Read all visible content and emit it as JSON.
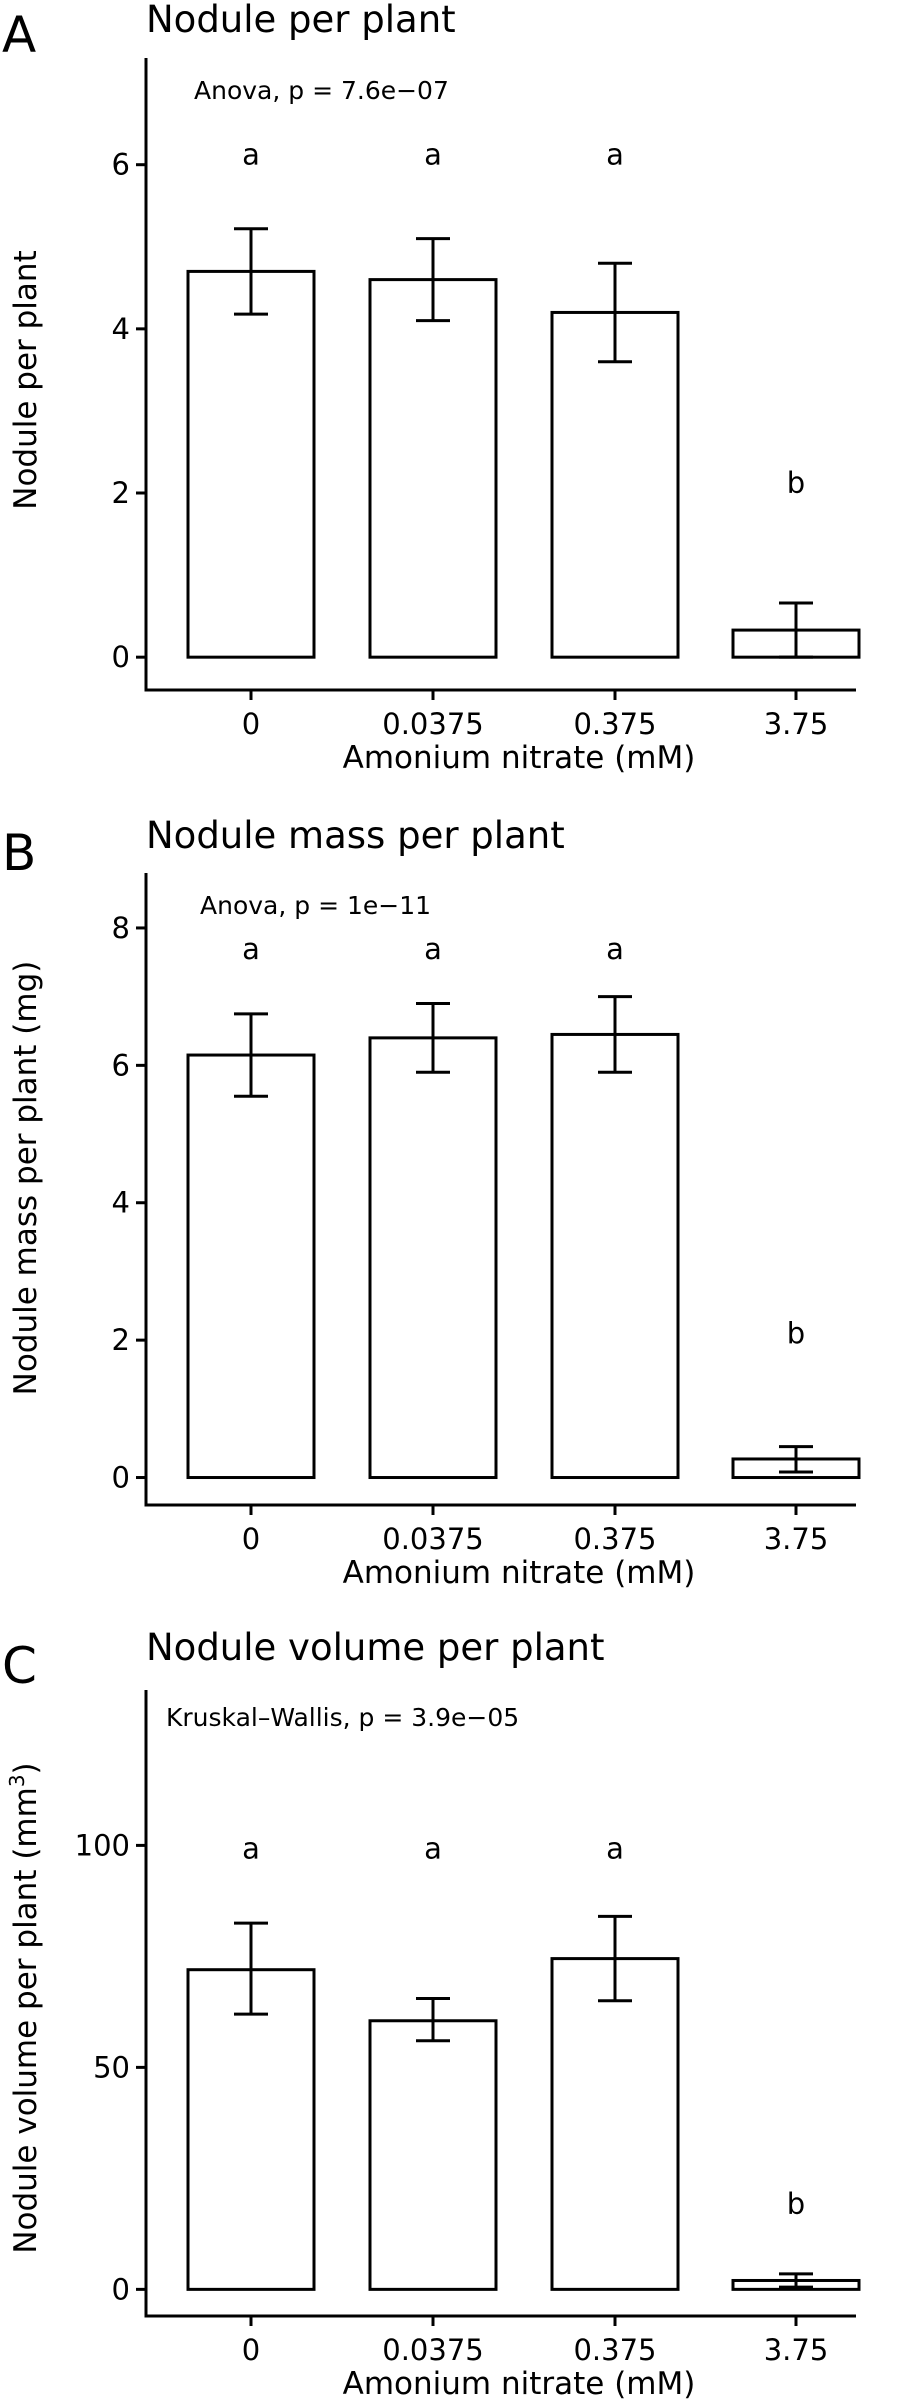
{
  "chart_data": [
    {
      "type": "bar",
      "panel": "A",
      "title": "Nodule per plant",
      "stat_text": "Anova, p = 7.6e−07",
      "xlabel": "Amonium nitrate (mM)",
      "ylabel": "Nodule per plant",
      "ylabel_sup": "",
      "ylabel_suffix": "",
      "categories": [
        "0",
        "0.0375",
        "0.375",
        "3.75"
      ],
      "values": [
        4.7,
        4.6,
        4.2,
        0.33
      ],
      "err_low": [
        4.18,
        4.1,
        3.6,
        0.0
      ],
      "err_high": [
        5.22,
        5.1,
        4.8,
        0.66
      ],
      "letters": [
        "a",
        "a",
        "a",
        "b"
      ],
      "letter_y": [
        6.0,
        6.0,
        6.0,
        2.0
      ],
      "ylim": [
        -0.4,
        7.3
      ],
      "yticks": [
        0,
        2,
        4,
        6
      ],
      "ytick_labels": [
        "0",
        "2",
        "4",
        "6"
      ]
    },
    {
      "type": "bar",
      "panel": "B",
      "title": "Nodule mass per plant",
      "stat_text": "Anova, p = 1e−11",
      "xlabel": "Amonium nitrate (mM)",
      "ylabel": "Nodule mass per plant (mg)",
      "ylabel_sup": "",
      "ylabel_suffix": "",
      "categories": [
        "0",
        "0.0375",
        "0.375",
        "3.75"
      ],
      "values": [
        6.15,
        6.4,
        6.45,
        0.27
      ],
      "err_low": [
        5.55,
        5.9,
        5.9,
        0.08
      ],
      "err_high": [
        6.75,
        6.9,
        7.0,
        0.45
      ],
      "letters": [
        "a",
        "a",
        "a",
        "b"
      ],
      "letter_y": [
        7.55,
        7.55,
        7.55,
        1.95
      ],
      "ylim": [
        -0.4,
        8.8
      ],
      "yticks": [
        0,
        2,
        4,
        6,
        8
      ],
      "ytick_labels": [
        "0",
        "2",
        "4",
        "6",
        "8"
      ]
    },
    {
      "type": "bar",
      "panel": "C",
      "title": "Nodule volume per plant",
      "stat_text": "Kruskal–Wallis, p = 3.9e−05",
      "xlabel": "Amonium nitrate (mM)",
      "ylabel": "Nodule volume per plant (mm",
      "ylabel_sup": "3",
      "ylabel_suffix": ")",
      "categories": [
        "0",
        "0.0375",
        "0.375",
        "3.75"
      ],
      "values": [
        72,
        60.5,
        74.5,
        2.0
      ],
      "err_low": [
        62,
        56,
        65,
        0.5
      ],
      "err_high": [
        82.5,
        65.5,
        84,
        3.5
      ],
      "letters": [
        "a",
        "a",
        "a",
        "b"
      ],
      "letter_y": [
        97,
        97,
        97,
        17
      ],
      "ylim": [
        -6,
        135
      ],
      "yticks": [
        0,
        50,
        100
      ],
      "ytick_labels": [
        "0",
        "50",
        "100"
      ]
    }
  ]
}
